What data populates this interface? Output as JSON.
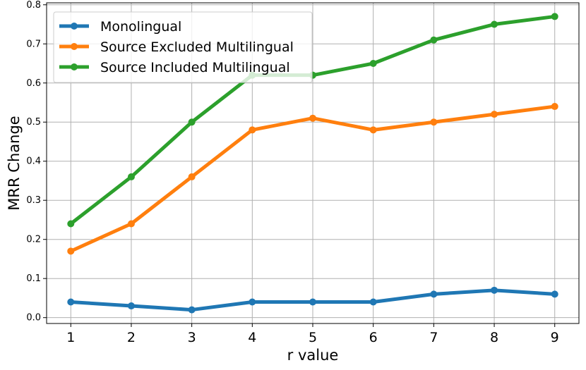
{
  "chart_data": {
    "type": "line",
    "title": "",
    "xlabel": "r value",
    "ylabel": "MRR Change",
    "x": [
      1,
      2,
      3,
      4,
      5,
      6,
      7,
      8,
      9
    ],
    "xlim": [
      0.6,
      9.4
    ],
    "ylim": [
      -0.015,
      0.805
    ],
    "yticks": [
      0.0,
      0.1,
      0.2,
      0.3,
      0.4,
      0.5,
      0.6,
      0.7,
      0.8
    ],
    "yticklabels": [
      "0.0",
      "0.1",
      "0.2",
      "0.3",
      "0.4",
      "0.5",
      "0.6",
      "0.7",
      "0.8"
    ],
    "xticks": [
      1,
      2,
      3,
      4,
      5,
      6,
      7,
      8,
      9
    ],
    "xticklabels": [
      "1",
      "2",
      "3",
      "4",
      "5",
      "6",
      "7",
      "8",
      "9"
    ],
    "grid": true,
    "legend_position": "top-left",
    "series": [
      {
        "name": "Monolingual",
        "color": "#1f77b4",
        "values": [
          0.04,
          0.03,
          0.02,
          0.04,
          0.04,
          0.04,
          0.06,
          0.07,
          0.06
        ]
      },
      {
        "name": "Source Excluded Multilingual",
        "color": "#ff7f0e",
        "values": [
          0.17,
          0.24,
          0.36,
          0.48,
          0.51,
          0.48,
          0.5,
          0.52,
          0.54
        ]
      },
      {
        "name": "Source Included Multilingual",
        "color": "#2ca02c",
        "values": [
          0.24,
          0.36,
          0.5,
          0.62,
          0.62,
          0.65,
          0.71,
          0.75,
          0.77
        ]
      }
    ]
  }
}
